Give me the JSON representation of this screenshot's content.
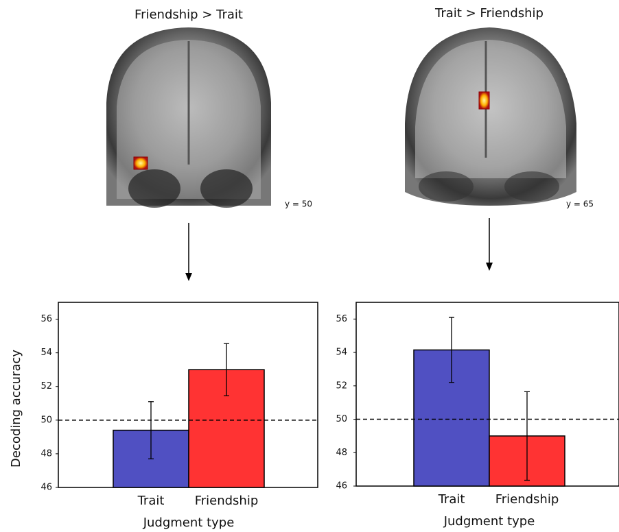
{
  "chart_data": [
    {
      "type": "bar",
      "title": "Friendship > Trait",
      "slice_label": "y = 50",
      "ylabel": "Decoding accuracy",
      "xlabel": "Judgment type",
      "categories": [
        "Trait",
        "Friendship"
      ],
      "values": [
        49.4,
        53.0
      ],
      "errors": [
        1.7,
        1.55
      ],
      "colors": [
        "#5050c2",
        "#ff3333"
      ],
      "reference_line": 50,
      "ylim": [
        46,
        57
      ],
      "yticks": [
        46,
        48,
        50,
        52,
        54,
        56
      ]
    },
    {
      "type": "bar",
      "title": "Trait > Friendship",
      "slice_label": "y = 65",
      "xlabel": "Judgment type",
      "categories": [
        "Trait",
        "Friendship"
      ],
      "values": [
        54.15,
        49.0
      ],
      "errors": [
        1.95,
        2.65
      ],
      "colors": [
        "#5050c2",
        "#ff3333"
      ],
      "reference_line": 50,
      "ylim": [
        46,
        57
      ],
      "yticks": [
        46,
        48,
        50,
        52,
        54,
        56
      ]
    }
  ]
}
